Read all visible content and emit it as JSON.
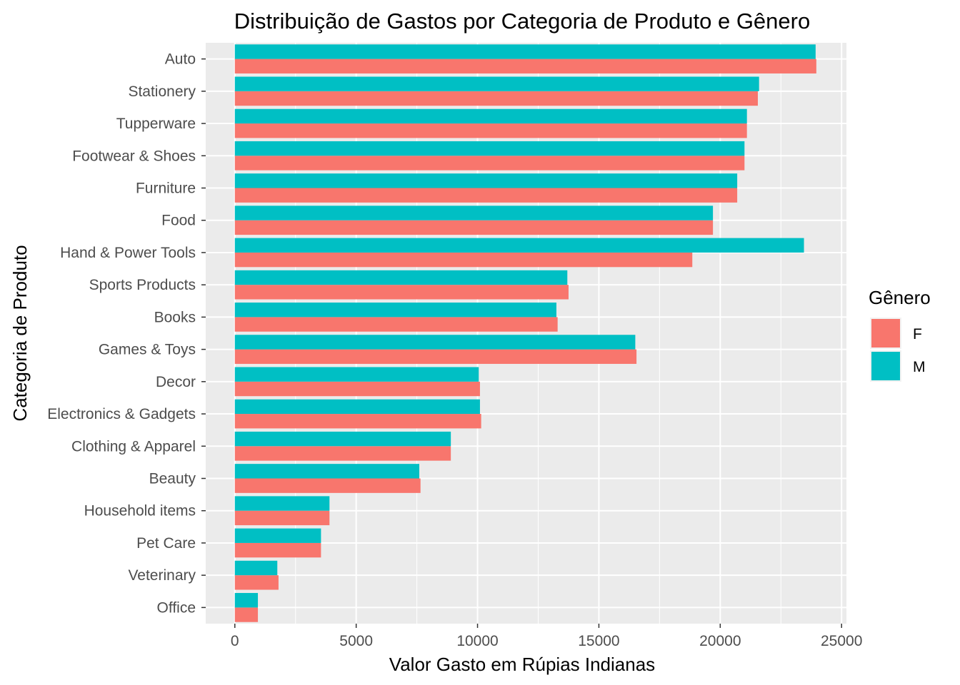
{
  "chart_data": {
    "type": "bar",
    "orientation": "horizontal",
    "title": "Distribuição de Gastos por Categoria de Produto e Gênero",
    "xlabel": "Valor Gasto em Rúpias Indianas",
    "ylabel": "Categoria de Produto",
    "xlim": [
      -1200,
      25200
    ],
    "x_ticks": [
      0,
      5000,
      10000,
      15000,
      20000,
      25000
    ],
    "x_tick_labels": [
      "0",
      "5000",
      "10000",
      "15000",
      "20000",
      "25000"
    ],
    "grid": true,
    "legend": {
      "title": "Gênero",
      "position": "right"
    },
    "categories": [
      "Auto",
      "Stationery",
      "Tupperware",
      "Footwear & Shoes",
      "Furniture",
      "Food",
      "Hand & Power Tools",
      "Sports Products",
      "Books",
      "Games & Toys",
      "Decor",
      "Electronics & Gadgets",
      "Clothing & Apparel",
      "Beauty",
      "Household items",
      "Pet Care",
      "Veterinary",
      "Office"
    ],
    "series": [
      {
        "name": "F",
        "color": "#F8766D",
        "values": [
          23960,
          21550,
          21100,
          21000,
          20700,
          19700,
          18850,
          13750,
          13300,
          16550,
          10100,
          10150,
          8900,
          7650,
          3900,
          3550,
          1800,
          950
        ]
      },
      {
        "name": "M",
        "color": "#00BFC4",
        "values": [
          23930,
          21600,
          21100,
          21000,
          20700,
          19700,
          23450,
          13700,
          13250,
          16500,
          10050,
          10100,
          8900,
          7600,
          3900,
          3550,
          1750,
          950
        ]
      }
    ]
  }
}
